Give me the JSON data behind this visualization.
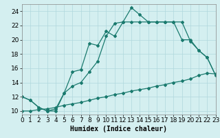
{
  "line1_x": [
    0,
    1,
    2,
    3,
    4,
    5,
    6,
    7,
    8,
    9,
    10,
    11,
    12,
    13,
    14,
    15,
    16,
    17,
    18,
    19,
    20,
    21,
    22,
    23
  ],
  "line1_y": [
    12,
    11.5,
    10.5,
    10,
    10,
    12.5,
    15.5,
    15.8,
    19.5,
    19.2,
    21.2,
    20.5,
    22.5,
    24.5,
    23.5,
    22.5,
    22.5,
    22.5,
    22.5,
    20.0,
    20.0,
    18.5,
    17.5,
    15.0
  ],
  "line2_x": [
    0,
    1,
    2,
    3,
    4,
    5,
    6,
    7,
    8,
    9,
    10,
    11,
    12,
    13,
    14,
    15,
    16,
    17,
    18,
    19,
    20,
    21,
    22,
    23
  ],
  "line2_y": [
    12,
    11.5,
    10.5,
    10,
    10.3,
    12.5,
    13.5,
    14.0,
    15.5,
    17.0,
    20.5,
    22.3,
    22.5,
    22.5,
    22.5,
    22.5,
    22.5,
    22.5,
    22.5,
    22.5,
    19.8,
    18.5,
    17.5,
    15.0
  ],
  "line3_x": [
    0,
    1,
    2,
    3,
    4,
    5,
    6,
    7,
    8,
    9,
    10,
    11,
    12,
    13,
    14,
    15,
    16,
    17,
    18,
    19,
    20,
    21,
    22,
    23
  ],
  "line3_y": [
    10.0,
    10.0,
    10.2,
    10.3,
    10.5,
    10.8,
    11.0,
    11.2,
    11.5,
    11.8,
    12.0,
    12.3,
    12.5,
    12.8,
    13.0,
    13.2,
    13.5,
    13.7,
    14.0,
    14.2,
    14.5,
    15.0,
    15.3,
    15.2
  ],
  "line_color": "#1a7a6e",
  "bg_color": "#d4eff0",
  "grid_color": "#b0d8dc",
  "xlabel": "Humidex (Indice chaleur)",
  "xlim": [
    0,
    23
  ],
  "ylim": [
    9.5,
    25.0
  ],
  "xticks": [
    0,
    1,
    2,
    3,
    4,
    5,
    6,
    7,
    8,
    9,
    10,
    11,
    12,
    13,
    14,
    15,
    16,
    17,
    18,
    19,
    20,
    21,
    22,
    23
  ],
  "yticks": [
    10,
    12,
    14,
    16,
    18,
    20,
    22,
    24
  ],
  "xlabel_fontsize": 7,
  "tick_fontsize": 6.5
}
